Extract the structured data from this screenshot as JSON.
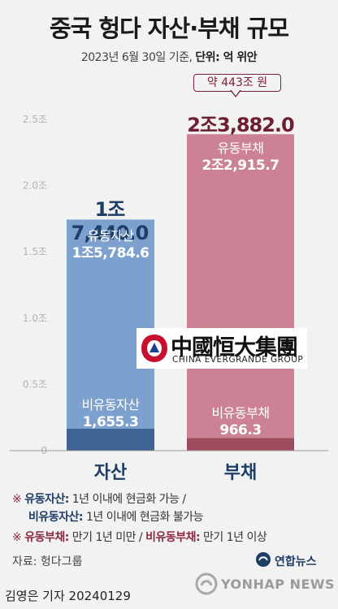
{
  "title": "중국 헝다 자산·부채 규모",
  "subtitle_prefix": "2023년 6월 30일 기준, ",
  "subtitle_unit": "단위: 억 위안",
  "callout": "약 443조 원",
  "chart_data": {
    "type": "bar",
    "stacked": true,
    "categories": [
      "자산",
      "부채"
    ],
    "series": [
      {
        "name": "유동자산",
        "values": [
          15784.6,
          null
        ]
      },
      {
        "name": "비유동자산",
        "values": [
          1655.3,
          null
        ]
      },
      {
        "name": "유동부채",
        "values": [
          null,
          22915.7
        ]
      },
      {
        "name": "비유동부채",
        "values": [
          null,
          966.3
        ]
      }
    ],
    "totals": [
      17440.0,
      23882.0
    ],
    "ylim": [
      0,
      25000
    ],
    "yticks": [
      0,
      5000,
      10000,
      15000,
      20000,
      25000
    ],
    "ytick_labels": [
      "0",
      "0.5조",
      "1.0조",
      "1.5조",
      "2.0조",
      "2.5조"
    ],
    "grid": false,
    "colors": {
      "asset_current": "#7da1cf",
      "asset_noncurrent": "#3d6494",
      "liab_current": "#cc8294",
      "liab_noncurrent": "#9e4b5d",
      "asset_total_text": "#1e3e66",
      "liab_total_text": "#6b1f31"
    }
  },
  "labels": {
    "asset_total": "1조7,440.0",
    "liab_total": "2조3,882.0",
    "asset_current_name": "유동자산",
    "asset_current_value": "1조5,784.6",
    "asset_noncurrent_name": "비유동자산",
    "asset_noncurrent_value": "1,655.3",
    "liab_current_name": "유동부채",
    "liab_current_value": "2조2,915.7",
    "liab_noncurrent_name": "비유동부채",
    "liab_noncurrent_value": "966.3",
    "cat_asset": "자산",
    "cat_liab": "부채"
  },
  "logo": {
    "chinese": "中國恒大集團",
    "english": "CHINA EVERGRANDE GROUP",
    "icon": "evergrande-logo-icon"
  },
  "notes": {
    "n1_term": "유동자산:",
    "n1_text": " 1년 이내에 현금화 가능 /",
    "n2_term": "비유동자산:",
    "n2_text": " 1년 이내에 현금화 불가능",
    "n3_term": "유동부채:",
    "n3_text": " 만기 1년 미만 / ",
    "n3_term2": "비유동부채:",
    "n3_text2": " 만기 1년 이상",
    "mark": "※ "
  },
  "source": "자료: 헝다그룹",
  "yonhap_korean": "연합뉴스",
  "yonhap_english": "YONHAP NEWS",
  "byline": "김영은 기자  20240129"
}
